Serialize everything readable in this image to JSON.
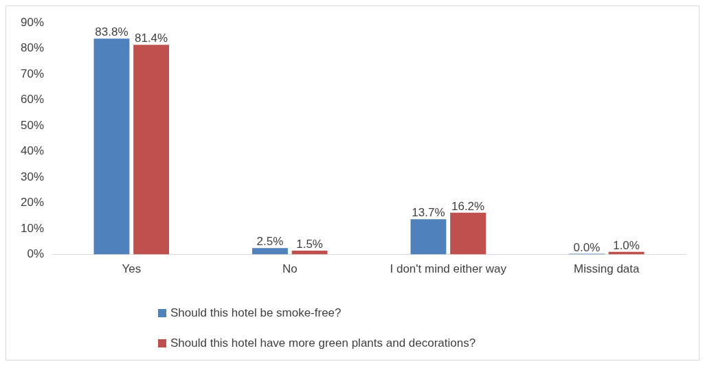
{
  "chart_data": {
    "type": "bar",
    "categories": [
      "Yes",
      "No",
      "I don't mind either way",
      "Missing data"
    ],
    "series": [
      {
        "name": "Should this hotel be smoke-free?",
        "color": "#4f81bd",
        "values": [
          83.8,
          2.5,
          13.7,
          0.0
        ],
        "value_labels": [
          "83.8%",
          "2.5%",
          "13.7%",
          "0.0%"
        ]
      },
      {
        "name": "Should this hotel have more green plants and decorations?",
        "color": "#c0504d",
        "values": [
          81.4,
          1.5,
          16.2,
          1.0
        ],
        "value_labels": [
          "81.4%",
          "1.5%",
          "16.2%",
          "1.0%"
        ]
      }
    ],
    "ylim": [
      0,
      90
    ],
    "yticks": [
      {
        "value": 0,
        "label": "0%"
      },
      {
        "value": 10,
        "label": "10%"
      },
      {
        "value": 20,
        "label": "20%"
      },
      {
        "value": 30,
        "label": "30%"
      },
      {
        "value": 40,
        "label": "40%"
      },
      {
        "value": 50,
        "label": "50%"
      },
      {
        "value": 60,
        "label": "60%"
      },
      {
        "value": 70,
        "label": "70%"
      },
      {
        "value": 80,
        "label": "80%"
      },
      {
        "value": 90,
        "label": "90%"
      }
    ],
    "grid": false,
    "legend": "bottom"
  }
}
